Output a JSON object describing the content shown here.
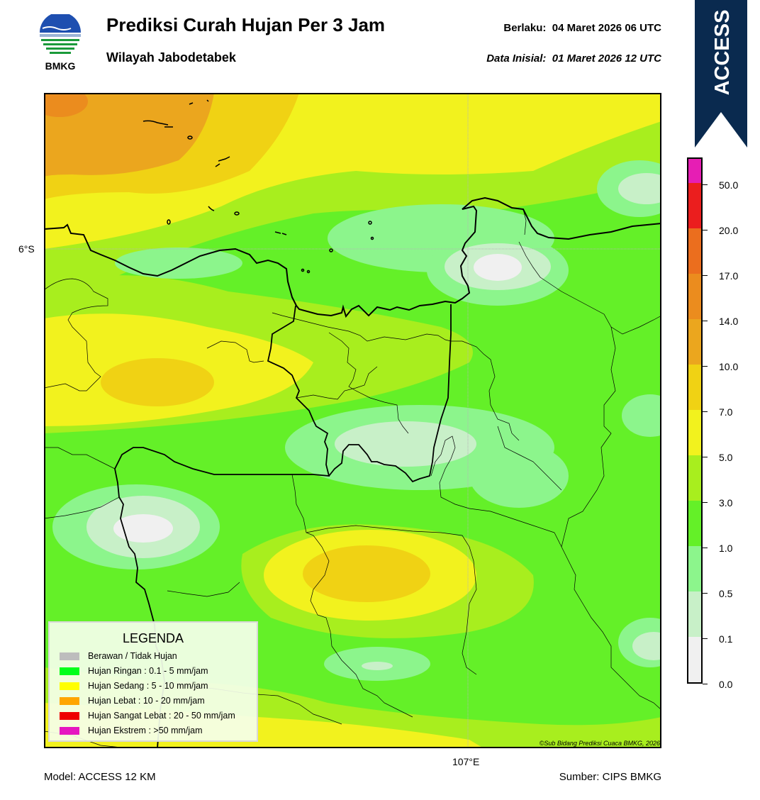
{
  "header": {
    "logo_text": "BMKG",
    "title": "Prediksi Curah Hujan Per 3 Jam",
    "subtitle": "Wilayah Jabodetabek",
    "valid_label": "Berlaku:",
    "valid_value": "04 Maret 2026 06 UTC",
    "init_label": "Data Inisial:",
    "init_value": "01 Maret 2026 12 UTC"
  },
  "banner": {
    "text": "ACCESS",
    "color": "#0a2a4f"
  },
  "map": {
    "lat_label": "6°S",
    "lon_label": "107°E",
    "credit": "©Sub Bidang Prediksi Cuaca BMKG, 2026"
  },
  "legend": {
    "title": "LEGENDA",
    "items": [
      {
        "label": "Berawan / Tidak Hujan",
        "color": "#bdbdbd"
      },
      {
        "label": "Hujan Ringan : 0.1 - 5 mm/jam",
        "color": "#00ff19"
      },
      {
        "label": "Hujan Sedang : 5 - 10 mm/jam",
        "color": "#ffff00"
      },
      {
        "label": "Hujan Lebat : 10 - 20 mm/jam",
        "color": "#ffa500"
      },
      {
        "label": "Hujan Sangat Lebat : 20 - 50 mm/jam",
        "color": "#ee0000"
      },
      {
        "label": "Hujan Ekstrem : >50 mm/jam",
        "color": "#e617c0"
      }
    ]
  },
  "colorbar": {
    "ticks": [
      "0.0",
      "0.1",
      "0.5",
      "1.0",
      "3.0",
      "5.0",
      "7.0",
      "10.0",
      "14.0",
      "17.0",
      "20.0",
      "50.0"
    ],
    "colors": [
      "#f0f0f0",
      "#c8f0c8",
      "#8cf58c",
      "#64f028",
      "#a8ee1e",
      "#f2f21e",
      "#f0d214",
      "#eba61e",
      "#eb8c1e",
      "#eb6e1e",
      "#eb1e1e",
      "#e61eb4"
    ]
  },
  "footer": {
    "model": "Model: ACCESS 12 KM",
    "source": "Sumber: CIPS BMKG"
  }
}
